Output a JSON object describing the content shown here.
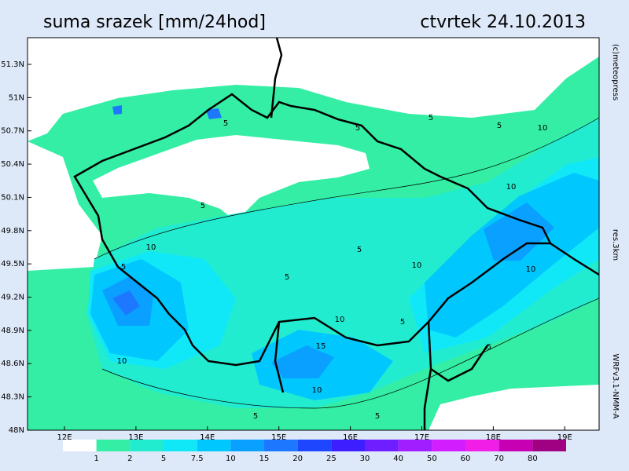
{
  "header": {
    "title": "suma srazek [mm/24hod]",
    "date": "ctvrtek 24.10.2013"
  },
  "map": {
    "lat_labels": [
      "51.3N",
      "51N",
      "50.7N",
      "50.4N",
      "50.1N",
      "49.8N",
      "49.5N",
      "49.2N",
      "48.9N",
      "48.6N",
      "48.3N",
      "48N"
    ],
    "lon_labels": [
      "12E",
      "13E",
      "14E",
      "15E",
      "16E",
      "17E",
      "18E",
      "19E"
    ],
    "contour_labels": [
      "5",
      "5",
      "5",
      "5",
      "5",
      "5",
      "5",
      "5",
      "5",
      "5",
      "5",
      "5",
      "10",
      "10",
      "10",
      "10",
      "10",
      "10",
      "10",
      "10",
      "15"
    ]
  },
  "legend": {
    "labels": [
      1,
      2,
      5,
      7.5,
      10,
      15,
      20,
      25,
      30,
      40,
      50,
      60,
      70,
      80
    ],
    "colors": [
      "#ffffff",
      "#33eea4",
      "#22ecd0",
      "#10e8f8",
      "#00c8ff",
      "#0aa0ff",
      "#1e78ff",
      "#1e46ff",
      "#3c1eff",
      "#6e1eff",
      "#a01eff",
      "#d21eff",
      "#f01ee6",
      "#c800b4",
      "#a00082"
    ]
  },
  "credits": {
    "copyright": "(c)meteopress",
    "resolution": "res.3km",
    "model": "WRFv3.1-NMM-A"
  }
}
